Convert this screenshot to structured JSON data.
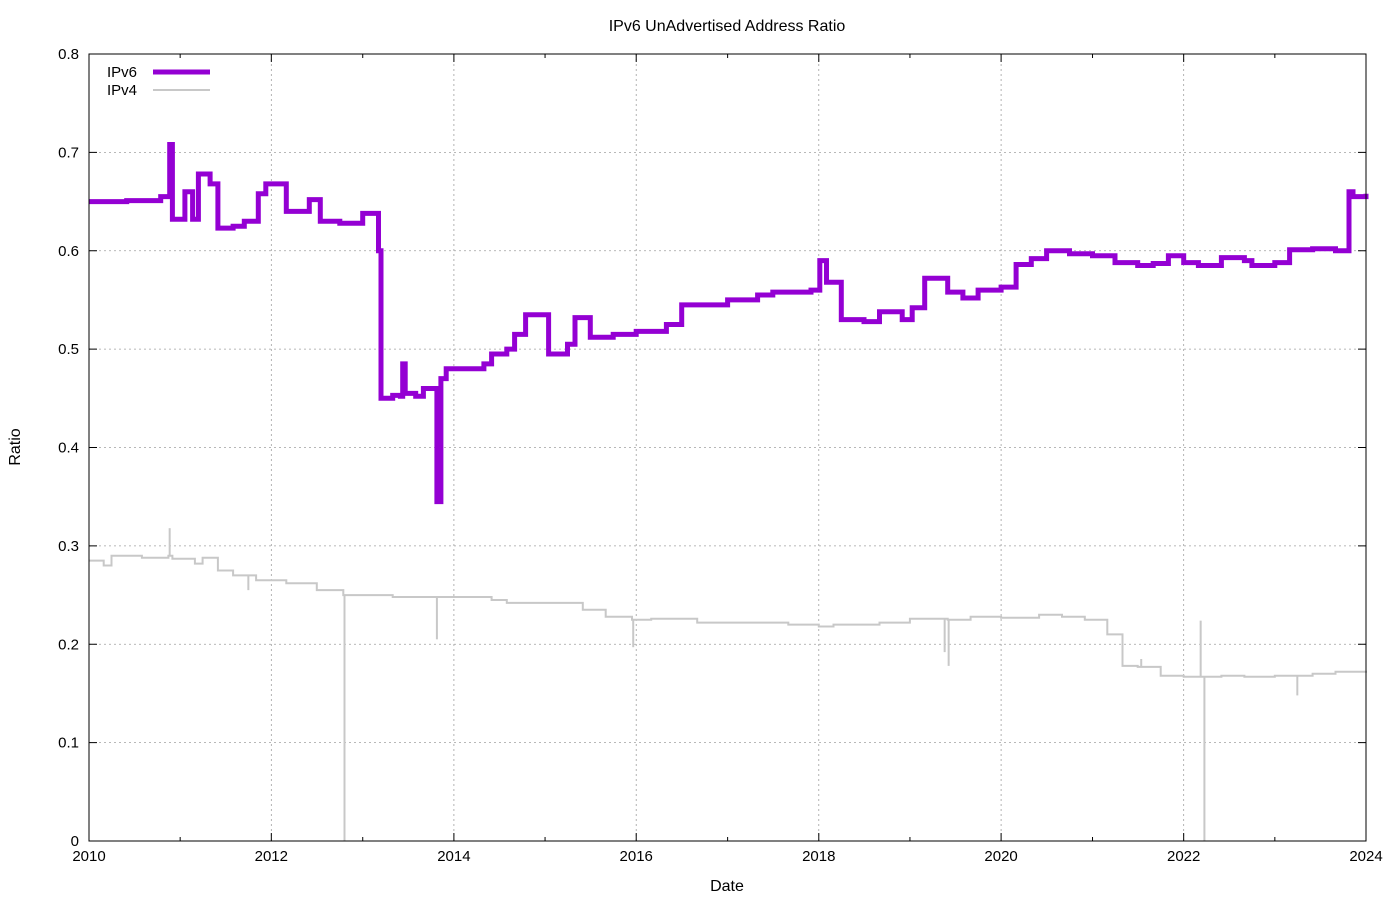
{
  "chart_data": {
    "type": "line",
    "title": "IPv6 UnAdvertised Address Ratio",
    "xlabel": "Date",
    "ylabel": "Ratio",
    "x_axis_type": "date",
    "xlim": [
      "2010-01-01",
      "2024-01-01"
    ],
    "ylim": [
      0,
      0.8
    ],
    "x_ticks": [
      "2010",
      "2012",
      "2014",
      "2016",
      "2018",
      "2020",
      "2022",
      "2024"
    ],
    "y_ticks": [
      "0",
      "0.1",
      "0.2",
      "0.3",
      "0.4",
      "0.5",
      "0.6",
      "0.7",
      "0.8"
    ],
    "grid": true,
    "legend_position": "top-left",
    "series": [
      {
        "name": "IPv6",
        "color": "#9400d3",
        "points": [
          [
            "2010-01-01",
            0.65
          ],
          [
            "2010-06-01",
            0.651
          ],
          [
            "2010-10-15",
            0.655
          ],
          [
            "2010-11-20",
            0.708
          ],
          [
            "2010-12-01",
            0.632
          ],
          [
            "2011-01-20",
            0.66
          ],
          [
            "2011-02-20",
            0.632
          ],
          [
            "2011-03-15",
            0.678
          ],
          [
            "2011-05-01",
            0.668
          ],
          [
            "2011-06-01",
            0.623
          ],
          [
            "2011-08-01",
            0.625
          ],
          [
            "2011-09-15",
            0.63
          ],
          [
            "2011-11-10",
            0.658
          ],
          [
            "2011-12-10",
            0.668
          ],
          [
            "2012-03-01",
            0.64
          ],
          [
            "2012-06-01",
            0.652
          ],
          [
            "2012-07-15",
            0.63
          ],
          [
            "2012-10-01",
            0.628
          ],
          [
            "2013-01-01",
            0.638
          ],
          [
            "2013-02-15",
            0.638
          ],
          [
            "2013-03-05",
            0.6
          ],
          [
            "2013-03-15",
            0.45
          ],
          [
            "2013-05-01",
            0.453
          ],
          [
            "2013-06-01",
            0.452
          ],
          [
            "2013-06-10",
            0.485
          ],
          [
            "2013-06-20",
            0.455
          ],
          [
            "2013-08-01",
            0.452
          ],
          [
            "2013-09-01",
            0.46
          ],
          [
            "2013-10-25",
            0.345
          ],
          [
            "2013-11-10",
            0.47
          ],
          [
            "2013-12-01",
            0.48
          ],
          [
            "2014-05-01",
            0.485
          ],
          [
            "2014-06-01",
            0.495
          ],
          [
            "2014-08-01",
            0.5
          ],
          [
            "2014-09-01",
            0.515
          ],
          [
            "2014-10-15",
            0.535
          ],
          [
            "2015-01-15",
            0.495
          ],
          [
            "2015-04-01",
            0.505
          ],
          [
            "2015-05-01",
            0.532
          ],
          [
            "2015-07-01",
            0.512
          ],
          [
            "2015-10-01",
            0.515
          ],
          [
            "2016-01-01",
            0.518
          ],
          [
            "2016-05-01",
            0.525
          ],
          [
            "2016-07-01",
            0.545
          ],
          [
            "2017-01-01",
            0.55
          ],
          [
            "2017-05-01",
            0.555
          ],
          [
            "2017-07-01",
            0.558
          ],
          [
            "2017-12-01",
            0.56
          ],
          [
            "2018-01-05",
            0.59
          ],
          [
            "2018-02-01",
            0.568
          ],
          [
            "2018-04-01",
            0.53
          ],
          [
            "2018-07-01",
            0.528
          ],
          [
            "2018-09-01",
            0.538
          ],
          [
            "2018-12-01",
            0.53
          ],
          [
            "2019-01-10",
            0.542
          ],
          [
            "2019-03-01",
            0.572
          ],
          [
            "2019-05-01",
            0.572
          ],
          [
            "2019-06-01",
            0.558
          ],
          [
            "2019-08-01",
            0.552
          ],
          [
            "2019-10-01",
            0.56
          ],
          [
            "2020-01-01",
            0.563
          ],
          [
            "2020-03-01",
            0.586
          ],
          [
            "2020-05-01",
            0.592
          ],
          [
            "2020-07-01",
            0.6
          ],
          [
            "2020-10-01",
            0.597
          ],
          [
            "2021-01-01",
            0.595
          ],
          [
            "2021-04-01",
            0.588
          ],
          [
            "2021-07-01",
            0.585
          ],
          [
            "2021-09-01",
            0.587
          ],
          [
            "2021-11-01",
            0.595
          ],
          [
            "2022-01-01",
            0.588
          ],
          [
            "2022-03-01",
            0.585
          ],
          [
            "2022-06-01",
            0.593
          ],
          [
            "2022-09-01",
            0.59
          ],
          [
            "2022-10-01",
            0.585
          ],
          [
            "2023-01-01",
            0.588
          ],
          [
            "2023-03-01",
            0.601
          ],
          [
            "2023-06-01",
            0.602
          ],
          [
            "2023-09-01",
            0.6
          ],
          [
            "2023-10-20",
            0.6
          ],
          [
            "2023-10-25",
            0.66
          ],
          [
            "2023-11-10",
            0.655
          ],
          [
            "2024-01-01",
            0.658
          ]
        ]
      },
      {
        "name": "IPv4",
        "color": "#c8c8c8",
        "points": [
          [
            "2010-01-01",
            0.285
          ],
          [
            "2010-02-01",
            0.285
          ],
          [
            "2010-03-01",
            0.28
          ],
          [
            "2010-04-01",
            0.29
          ],
          [
            "2010-06-01",
            0.29
          ],
          [
            "2010-08-01",
            0.288
          ],
          [
            "2010-11-15",
            0.29
          ],
          [
            "2010-12-01",
            0.287
          ],
          [
            "2011-03-01",
            0.282
          ],
          [
            "2011-04-01",
            0.288
          ],
          [
            "2011-06-01",
            0.275
          ],
          [
            "2011-08-01",
            0.27
          ],
          [
            "2011-11-01",
            0.265
          ],
          [
            "2012-03-01",
            0.262
          ],
          [
            "2012-07-01",
            0.255
          ],
          [
            "2012-10-15",
            0.25
          ],
          [
            "2013-01-01",
            0.25
          ],
          [
            "2013-05-01",
            0.248
          ],
          [
            "2013-10-25",
            0.248
          ],
          [
            "2014-01-01",
            0.248
          ],
          [
            "2014-03-01",
            0.248
          ],
          [
            "2014-06-01",
            0.245
          ],
          [
            "2014-08-01",
            0.242
          ],
          [
            "2015-03-01",
            0.242
          ],
          [
            "2015-06-01",
            0.235
          ],
          [
            "2015-09-01",
            0.228
          ],
          [
            "2015-12-15",
            0.225
          ],
          [
            "2016-03-01",
            0.226
          ],
          [
            "2016-09-01",
            0.222
          ],
          [
            "2017-03-01",
            0.222
          ],
          [
            "2017-09-01",
            0.22
          ],
          [
            "2018-01-01",
            0.218
          ],
          [
            "2018-03-01",
            0.22
          ],
          [
            "2018-09-01",
            0.222
          ],
          [
            "2019-01-01",
            0.226
          ],
          [
            "2019-06-01",
            0.225
          ],
          [
            "2019-09-01",
            0.228
          ],
          [
            "2020-01-01",
            0.227
          ],
          [
            "2020-06-01",
            0.23
          ],
          [
            "2020-09-01",
            0.228
          ],
          [
            "2020-12-01",
            0.225
          ],
          [
            "2021-03-01",
            0.21
          ],
          [
            "2021-05-01",
            0.178
          ],
          [
            "2021-07-01",
            0.177
          ],
          [
            "2021-10-01",
            0.168
          ],
          [
            "2022-01-01",
            0.167
          ],
          [
            "2022-06-01",
            0.168
          ],
          [
            "2022-09-01",
            0.167
          ],
          [
            "2023-01-01",
            0.168
          ],
          [
            "2023-06-01",
            0.17
          ],
          [
            "2023-09-01",
            0.172
          ],
          [
            "2024-01-01",
            0.173
          ]
        ],
        "spikes": [
          [
            "2010-11-20",
            0.318
          ],
          [
            "2011-10-01",
            0.255
          ],
          [
            "2012-10-20",
            0.0
          ],
          [
            "2013-10-25",
            0.205
          ],
          [
            "2015-12-20",
            0.197
          ],
          [
            "2019-05-20",
            0.192
          ],
          [
            "2019-06-05",
            0.178
          ],
          [
            "2021-07-15",
            0.185
          ],
          [
            "2022-03-10",
            0.224
          ],
          [
            "2022-03-25",
            0.0
          ],
          [
            "2023-04-01",
            0.148
          ]
        ]
      }
    ]
  }
}
